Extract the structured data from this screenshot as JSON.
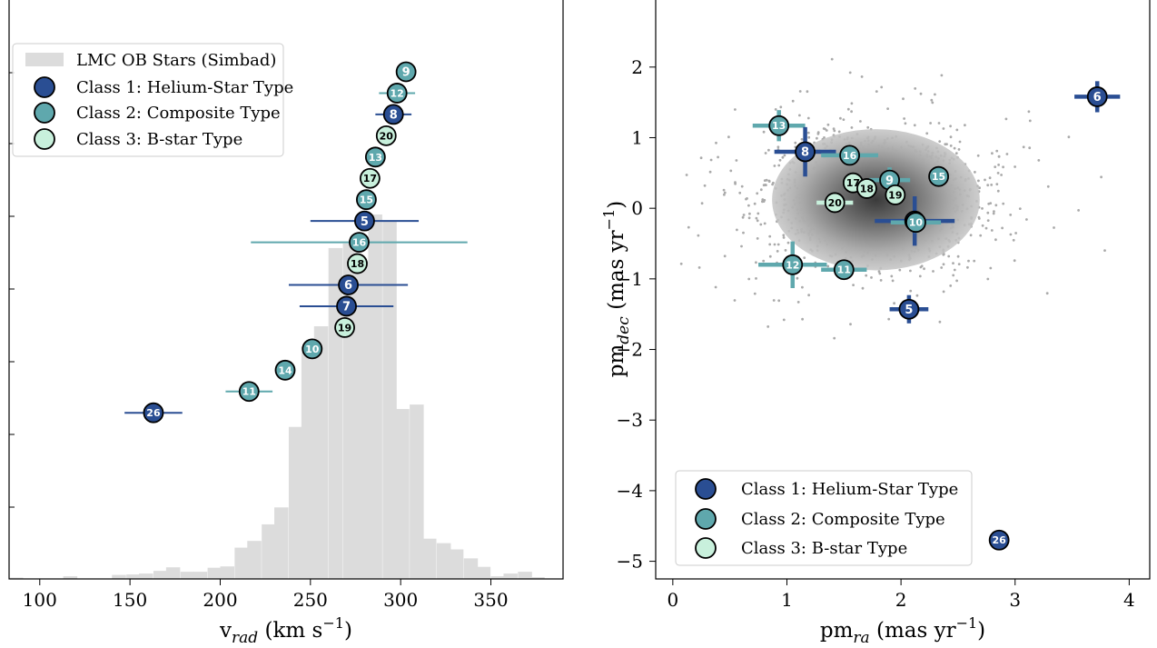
{
  "colors": {
    "class1": "#2a4e93",
    "class2": "#5fa8ad",
    "class3": "#c8f0dc",
    "histogram": "#dcdcdc",
    "scatter": "#aaaaaa"
  },
  "chart_data": [
    {
      "type": "histogram",
      "xlabel_base": "v",
      "xlabel_sub": "rad",
      "xlabel_unit": "(km s",
      "xlabel_exp": "−1",
      "xlabel_close": ")",
      "xlim": [
        83,
        390
      ],
      "xticks": [
        "100",
        "150",
        "200",
        "250",
        "300",
        "350"
      ],
      "xtick_values": [
        100,
        150,
        200,
        250,
        300,
        350
      ],
      "hist_max": 1.0,
      "legend": {
        "position": "top-left",
        "entries": [
          "LMC OB Stars (Simbad)",
          "Class 1: Helium-Star Type",
          "Class 2: Composite Type",
          "Class 3: B-star Type"
        ]
      },
      "histogram": {
        "bin_width": 7.5,
        "bins": [
          {
            "x0": 83,
            "h": 0.003
          },
          {
            "x0": 113,
            "h": 0.006
          },
          {
            "x0": 140,
            "h": 0.009
          },
          {
            "x0": 148,
            "h": 0.01
          },
          {
            "x0": 155,
            "h": 0.012
          },
          {
            "x0": 163,
            "h": 0.018
          },
          {
            "x0": 170,
            "h": 0.026
          },
          {
            "x0": 178,
            "h": 0.016
          },
          {
            "x0": 185,
            "h": 0.016
          },
          {
            "x0": 193,
            "h": 0.025
          },
          {
            "x0": 200,
            "h": 0.028
          },
          {
            "x0": 208,
            "h": 0.07
          },
          {
            "x0": 215,
            "h": 0.085
          },
          {
            "x0": 223,
            "h": 0.122
          },
          {
            "x0": 230,
            "h": 0.16
          },
          {
            "x0": 238,
            "h": 0.34
          },
          {
            "x0": 245,
            "h": 0.52
          },
          {
            "x0": 252,
            "h": 0.565
          },
          {
            "x0": 260,
            "h": 0.74
          },
          {
            "x0": 268,
            "h": 0.75
          },
          {
            "x0": 275,
            "h": 0.71
          },
          {
            "x0": 282,
            "h": 0.815
          },
          {
            "x0": 290,
            "h": 0.8
          },
          {
            "x0": 297,
            "h": 0.38
          },
          {
            "x0": 305,
            "h": 0.39
          },
          {
            "x0": 312,
            "h": 0.09
          },
          {
            "x0": 320,
            "h": 0.08
          },
          {
            "x0": 327,
            "h": 0.066
          },
          {
            "x0": 335,
            "h": 0.046
          },
          {
            "x0": 342,
            "h": 0.027
          },
          {
            "x0": 350,
            "h": 0.006
          },
          {
            "x0": 357,
            "h": 0.012
          },
          {
            "x0": 365,
            "h": 0.016
          },
          {
            "x0": 372,
            "h": 0.004
          }
        ]
      },
      "points": [
        {
          "id": "9",
          "cls": 2,
          "v": 303,
          "err": 0
        },
        {
          "id": "12",
          "cls": 2,
          "v": 298,
          "err": 10
        },
        {
          "id": "8",
          "cls": 1,
          "v": 296,
          "err": 10
        },
        {
          "id": "20",
          "cls": 3,
          "v": 292,
          "err": 0
        },
        {
          "id": "13",
          "cls": 2,
          "v": 286,
          "err": 0
        },
        {
          "id": "17",
          "cls": 3,
          "v": 283,
          "err": 0
        },
        {
          "id": "15",
          "cls": 2,
          "v": 281,
          "err": 0
        },
        {
          "id": "5",
          "cls": 1,
          "v": 280,
          "err": 30
        },
        {
          "id": "16",
          "cls": 2,
          "v": 277,
          "err": 60
        },
        {
          "id": "18",
          "cls": 3,
          "v": 276,
          "err": 0
        },
        {
          "id": "6",
          "cls": 1,
          "v": 271,
          "err": 33
        },
        {
          "id": "7",
          "cls": 1,
          "v": 270,
          "err": 26
        },
        {
          "id": "19",
          "cls": 3,
          "v": 269,
          "err": 0
        },
        {
          "id": "10",
          "cls": 2,
          "v": 251,
          "err": 0
        },
        {
          "id": "14",
          "cls": 2,
          "v": 236,
          "err": 0
        },
        {
          "id": "11",
          "cls": 2,
          "v": 216,
          "err": 13
        },
        {
          "id": "26",
          "cls": 1,
          "v": 163,
          "err": 16
        }
      ]
    },
    {
      "type": "scatter",
      "xlabel_base": "pm",
      "xlabel_sub": "ra",
      "xlabel_unit": "(mas yr",
      "xlabel_exp": "−1",
      "xlabel_close": ")",
      "ylabel_base": "pm",
      "ylabel_sub": "dec",
      "ylabel_unit": "(mas yr",
      "ylabel_exp": "−1",
      "ylabel_close": ")",
      "xlim": [
        -0.15,
        4.18
      ],
      "ylim": [
        -5.25,
        2.95
      ],
      "xticks": [
        "0",
        "1",
        "2",
        "3",
        "4"
      ],
      "xtick_values": [
        0,
        1,
        2,
        3,
        4
      ],
      "yticks": [
        "2",
        "1",
        "0",
        "−1",
        "−2",
        "−3",
        "−4",
        "−5"
      ],
      "ytick_values": [
        2,
        1,
        0,
        -1,
        -2,
        -3,
        -4,
        -5
      ],
      "legend": {
        "position": "lower-left",
        "entries": [
          "Class 1: Helium-Star Type",
          "Class 2: Composite Type",
          "Class 3: B-star Type"
        ]
      },
      "points": [
        {
          "id": "6",
          "cls": 1,
          "x": 3.72,
          "y": 1.58,
          "ex": 0.2,
          "ey": 0.22
        },
        {
          "id": "13",
          "cls": 2,
          "x": 0.93,
          "y": 1.17,
          "ex": 0.23,
          "ey": 0.22
        },
        {
          "id": "8",
          "cls": 1,
          "x": 1.16,
          "y": 0.8,
          "ex": 0.27,
          "ey": 0.35
        },
        {
          "id": "16",
          "cls": 2,
          "x": 1.55,
          "y": 0.75,
          "ex": 0.25,
          "ey": 0.0
        },
        {
          "id": "15",
          "cls": 2,
          "x": 2.33,
          "y": 0.45,
          "ex": 0.0,
          "ey": 0.0
        },
        {
          "id": "9",
          "cls": 2,
          "x": 1.9,
          "y": 0.4,
          "ex": 0.18,
          "ey": 0.18
        },
        {
          "id": "17",
          "cls": 3,
          "x": 1.58,
          "y": 0.36,
          "ex": 0.0,
          "ey": 0.0
        },
        {
          "id": "18",
          "cls": 3,
          "x": 1.7,
          "y": 0.28,
          "ex": 0.0,
          "ey": 0.0
        },
        {
          "id": "19",
          "cls": 3,
          "x": 1.95,
          "y": 0.19,
          "ex": 0.0,
          "ey": 0.0
        },
        {
          "id": "20",
          "cls": 3,
          "x": 1.42,
          "y": 0.08,
          "ex": 0.16,
          "ey": 0.0
        },
        {
          "id": "7",
          "cls": 1,
          "x": 2.12,
          "y": -0.18,
          "ex": 0.35,
          "ey": 0.35
        },
        {
          "id": "10",
          "cls": 2,
          "x": 2.13,
          "y": -0.2,
          "ex": 0.22,
          "ey": 0.15
        },
        {
          "id": "12",
          "cls": 2,
          "x": 1.05,
          "y": -0.8,
          "ex": 0.3,
          "ey": 0.33
        },
        {
          "id": "11",
          "cls": 2,
          "x": 1.5,
          "y": -0.87,
          "ex": 0.2,
          "ey": 0.0
        },
        {
          "id": "5",
          "cls": 1,
          "x": 2.07,
          "y": -1.43,
          "ex": 0.17,
          "ey": 0.2
        },
        {
          "id": "26",
          "cls": 1,
          "x": 2.86,
          "y": -4.7,
          "ex": 0.0,
          "ey": 0.0
        }
      ]
    }
  ]
}
